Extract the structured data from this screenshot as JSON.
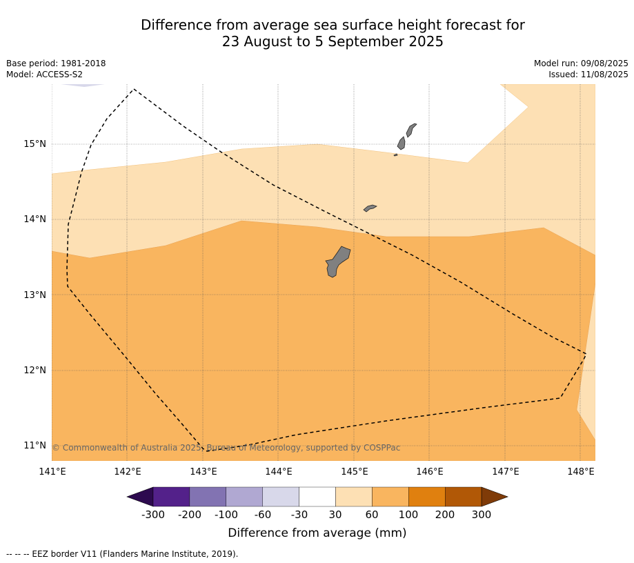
{
  "title_line1": "Difference from average sea surface height forecast for",
  "title_line2": "23 August to 5 September 2025",
  "base_period": "Base period: 1981-2018",
  "model": "Model: ACCESS-S2",
  "model_run": "Model run: 09/08/2025",
  "issued": "Issued: 11/08/2025",
  "copyright": "© Commonwealth of Australia 2025, Bureau of Meteorology, supported by COSPPac",
  "footer_note": "--  --  -- EEZ border V11 (Flanders Marine Institute, 2019).",
  "map": {
    "lon_ticks": [
      "141°E",
      "142°E",
      "143°E",
      "144°E",
      "145°E",
      "146°E",
      "147°E",
      "148°E"
    ],
    "lat_ticks": [
      "15°N",
      "14°N",
      "13°N",
      "12°N",
      "11°N"
    ]
  },
  "colorbar": {
    "title": "Difference from average (mm)",
    "labels": [
      "-300",
      "-200",
      "-100",
      "-60",
      "-30",
      "30",
      "60",
      "100",
      "200",
      "300"
    ],
    "colors": [
      "#53218a",
      "#8273b2",
      "#b0a8d2",
      "#d8d8ea",
      "#ffffff",
      "#fde0b4",
      "#f9b55f",
      "#e0800f",
      "#b15806"
    ],
    "under_color": "#2d0a4f",
    "over_color": "#7f3b08"
  },
  "palette": {
    "band_30_60": "#fde0b4",
    "band_60_100": "#f9b55f",
    "land": "#808080"
  }
}
